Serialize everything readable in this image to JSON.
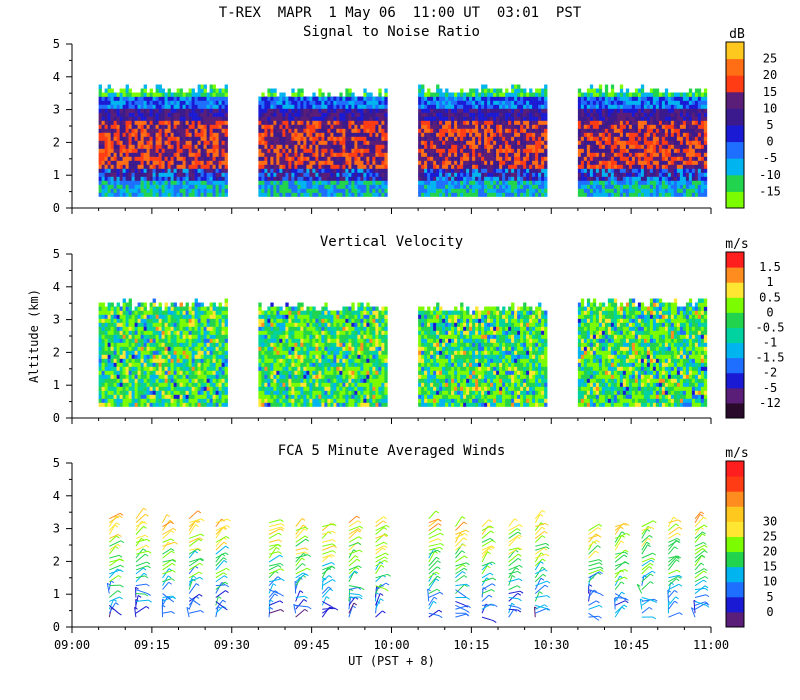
{
  "header": {
    "line": "T-REX  MAPR  1 May 06  11:00 UT  03:01  PST"
  },
  "chart_data": [
    {
      "type": "heatmap",
      "title": "Signal to Noise Ratio",
      "ylabel": "",
      "ylim": [
        0,
        5
      ],
      "yticks": [
        "0",
        "1",
        "2",
        "3",
        "4",
        "5"
      ],
      "xlim": [
        "09:00",
        "11:00"
      ],
      "colorbar": {
        "unit": "dB",
        "labels": [
          "-15",
          "-10",
          "-5",
          "0",
          "5",
          "10",
          "15",
          "20",
          "25"
        ],
        "colors": [
          "#7cfc00",
          "#22d34d",
          "#00b4f0",
          "#1e6eff",
          "#1a1ad4",
          "#3a1a8c",
          "#5a1e78",
          "#ff3c14",
          "#ff6e14",
          "#ffc81e"
        ]
      },
      "data_blocks": [
        {
          "start": "09:05",
          "end": "09:29",
          "top_km": 3.7,
          "bottom_km": 0.35
        },
        {
          "start": "09:35",
          "end": "09:59",
          "top_km": 3.6,
          "bottom_km": 0.35
        },
        {
          "start": "10:05",
          "end": "10:29",
          "top_km": 3.7,
          "bottom_km": 0.35
        },
        {
          "start": "10:35",
          "end": "10:59",
          "top_km": 3.7,
          "bottom_km": 0.35
        }
      ]
    },
    {
      "type": "heatmap",
      "title": "Vertical Velocity",
      "ylabel": "Altitude (km)",
      "ylim": [
        0,
        5
      ],
      "yticks": [
        "0",
        "1",
        "2",
        "3",
        "4",
        "5"
      ],
      "xlim": [
        "09:00",
        "11:00"
      ],
      "colorbar": {
        "unit": "m/s",
        "labels": [
          "-12",
          "-5",
          "-2",
          "-1.5",
          "-1",
          "-0.5",
          "0",
          "0.5",
          "1",
          "1.5"
        ],
        "colors": [
          "#2a0a2a",
          "#5a1e78",
          "#1a1ad4",
          "#1e6eff",
          "#00b4f0",
          "#00d2a0",
          "#22d34d",
          "#7cfc00",
          "#ffe632",
          "#ff8c1e",
          "#ff1e1e"
        ]
      },
      "data_blocks": [
        {
          "start": "09:05",
          "end": "09:29",
          "top_km": 3.55,
          "bottom_km": 0.35
        },
        {
          "start": "09:35",
          "end": "09:59",
          "top_km": 3.5,
          "bottom_km": 0.35
        },
        {
          "start": "10:05",
          "end": "10:29",
          "top_km": 3.45,
          "bottom_km": 0.35
        },
        {
          "start": "10:35",
          "end": "10:59",
          "top_km": 3.6,
          "bottom_km": 0.35
        }
      ]
    },
    {
      "type": "scatter",
      "title": "FCA 5 Minute Averaged Winds",
      "ylabel": "",
      "ylim": [
        0,
        5
      ],
      "yticks": [
        "0",
        "1",
        "2",
        "3",
        "4",
        "5"
      ],
      "xticks": [
        "09:00",
        "09:15",
        "09:30",
        "09:45",
        "10:00",
        "10:15",
        "10:30",
        "10:45",
        "11:00"
      ],
      "xlabel": "UT  (PST + 8)",
      "colorbar": {
        "unit": "m/s",
        "labels": [
          "0",
          "5",
          "10",
          "15",
          "20",
          "25",
          "30"
        ],
        "colors": [
          "#5a1e78",
          "#1a1ad4",
          "#1e6eff",
          "#00b4f0",
          "#22d34d",
          "#7cfc00",
          "#ffe632",
          "#ffc81e",
          "#ff8c1e",
          "#ff3c14",
          "#ff1e1e"
        ]
      },
      "profiles_at": [
        "09:07",
        "09:12",
        "09:17",
        "09:22",
        "09:27",
        "09:37",
        "09:42",
        "09:47",
        "09:52",
        "09:57",
        "10:07",
        "10:12",
        "10:17",
        "10:22",
        "10:27",
        "10:37",
        "10:42",
        "10:47",
        "10:52",
        "10:57"
      ],
      "profile_range_km": [
        0.3,
        3.4
      ]
    }
  ]
}
